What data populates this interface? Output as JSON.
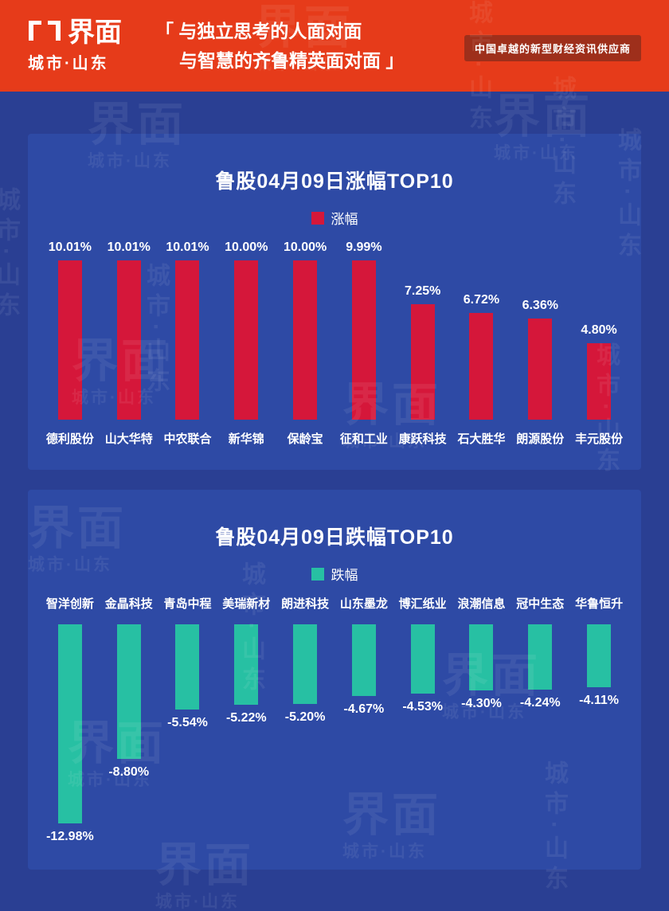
{
  "header": {
    "logo_title": "界面",
    "logo_subtitle": "城市·山东",
    "quote_line1": "「 与独立思考的人面对面",
    "quote_line2": "与智慧的齐鲁精英面对面 」",
    "badge": "中国卓越的新型财经资讯供应商"
  },
  "watermark": {
    "title": "界面",
    "subtitle": "城市·山东"
  },
  "colors": {
    "header_bg": "#e63b1a",
    "badge_bg": "#9e2f1b",
    "page_bg": "#2a3f93",
    "panel_bg": "#2e4aa5",
    "rise": "#d5173a",
    "fall": "#27c0a3"
  },
  "chart_data": [
    {
      "type": "bar",
      "title": "鲁股04月09日涨幅TOP10",
      "legend": "涨幅",
      "bar_color": "#d5173a",
      "category_position": "bottom",
      "categories": [
        "德利股份",
        "山大华特",
        "中农联合",
        "新华锦",
        "保龄宝",
        "征和工业",
        "康跃科技",
        "石大胜华",
        "朗源股份",
        "丰元股份"
      ],
      "values": [
        10.01,
        10.01,
        10.01,
        10.0,
        10.0,
        9.99,
        7.25,
        6.72,
        6.36,
        4.8
      ],
      "labels": [
        "10.01%",
        "10.01%",
        "10.01%",
        "10.00%",
        "10.00%",
        "9.99%",
        "7.25%",
        "6.72%",
        "6.36%",
        "4.80%"
      ],
      "xlabel": "",
      "ylabel": "",
      "ylim": [
        0,
        10.01
      ],
      "grid": false,
      "legend_position": "top"
    },
    {
      "type": "bar",
      "title": "鲁股04月09日跌幅TOP10",
      "legend": "跌幅",
      "bar_color": "#27c0a3",
      "category_position": "top",
      "categories": [
        "智洋创新",
        "金晶科技",
        "青岛中程",
        "美瑞新材",
        "朗进科技",
        "山东墨龙",
        "博汇纸业",
        "浪潮信息",
        "冠中生态",
        "华鲁恒升"
      ],
      "values": [
        -12.98,
        -8.8,
        -5.54,
        -5.22,
        -5.2,
        -4.67,
        -4.53,
        -4.3,
        -4.24,
        -4.11
      ],
      "labels": [
        "-12.98%",
        "-8.80%",
        "-5.54%",
        "-5.22%",
        "-5.20%",
        "-4.67%",
        "-4.53%",
        "-4.30%",
        "-4.24%",
        "-4.11%"
      ],
      "xlabel": "",
      "ylabel": "",
      "ylim": [
        -12.98,
        0
      ],
      "grid": false,
      "legend_position": "top"
    }
  ]
}
